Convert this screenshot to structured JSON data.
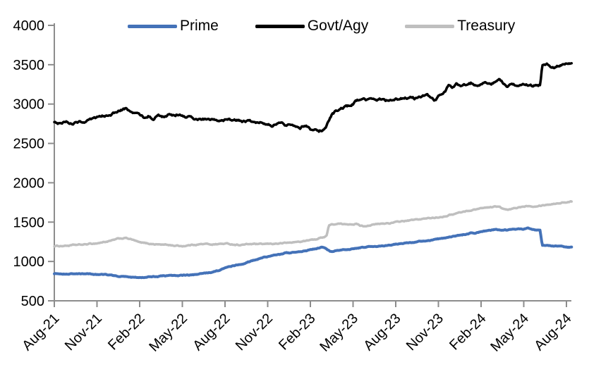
{
  "page": {
    "background": "#ffffff",
    "axis_color": "#8c8c8c",
    "text_color": "#000000"
  },
  "legend": {
    "position": "top",
    "items": [
      {
        "label": "Prime",
        "color": "#4472b8"
      },
      {
        "label": "Govt/Agy",
        "color": "#000000"
      },
      {
        "label": "Treasury",
        "color": "#bfbfbf"
      }
    ]
  },
  "chart_data": {
    "type": "line",
    "title": "",
    "xlabel": "",
    "ylabel": "",
    "grid": false,
    "legend_position": "top",
    "ylim": [
      500,
      4000
    ],
    "y_ticks": [
      500,
      1000,
      1500,
      2000,
      2500,
      3000,
      3500,
      4000
    ],
    "x_unit": "months since Aug-2021",
    "x_tick_months": [
      0,
      3,
      6,
      9,
      12,
      15,
      18,
      21,
      24,
      27,
      30,
      33,
      36
    ],
    "x_tick_labels": [
      "Aug-21",
      "Nov-21",
      "Feb-22",
      "May-22",
      "Aug-22",
      "Nov-22",
      "Feb-23",
      "May-23",
      "Aug-23",
      "Nov-23",
      "Feb-24",
      "May-24",
      "Aug-24"
    ],
    "series": [
      {
        "name": "Prime",
        "color": "#4472b8",
        "width": 4,
        "points": [
          [
            0,
            845
          ],
          [
            0.5,
            848
          ],
          [
            1,
            841
          ],
          [
            1.5,
            844
          ],
          [
            2,
            839
          ],
          [
            2.5,
            842
          ],
          [
            3,
            838
          ],
          [
            3.5,
            831
          ],
          [
            4,
            821
          ],
          [
            4.5,
            811
          ],
          [
            5,
            805
          ],
          [
            5.5,
            799
          ],
          [
            6,
            798
          ],
          [
            6.5,
            804
          ],
          [
            7,
            810
          ],
          [
            7.5,
            815
          ],
          [
            8,
            818
          ],
          [
            8.5,
            816
          ],
          [
            9,
            821
          ],
          [
            9.5,
            826
          ],
          [
            10,
            833
          ],
          [
            10.5,
            846
          ],
          [
            11,
            863
          ],
          [
            11.5,
            882
          ],
          [
            12,
            916
          ],
          [
            12.5,
            941
          ],
          [
            13,
            962
          ],
          [
            13.5,
            986
          ],
          [
            14,
            1012
          ],
          [
            14.5,
            1041
          ],
          [
            15,
            1063
          ],
          [
            15.5,
            1081
          ],
          [
            16,
            1093
          ],
          [
            16.2,
            1111
          ],
          [
            16.6,
            1107
          ],
          [
            17,
            1117
          ],
          [
            17.5,
            1131
          ],
          [
            18,
            1149
          ],
          [
            18.6,
            1171
          ],
          [
            18.9,
            1179
          ],
          [
            19.15,
            1152
          ],
          [
            19.4,
            1129
          ],
          [
            20,
            1139
          ],
          [
            20.5,
            1151
          ],
          [
            21,
            1161
          ],
          [
            21.5,
            1174
          ],
          [
            22,
            1184
          ],
          [
            22.5,
            1191
          ],
          [
            23,
            1197
          ],
          [
            23.5,
            1204
          ],
          [
            24,
            1217
          ],
          [
            24.5,
            1231
          ],
          [
            25,
            1241
          ],
          [
            25.5,
            1251
          ],
          [
            26,
            1257
          ],
          [
            26.5,
            1269
          ],
          [
            27,
            1284
          ],
          [
            27.5,
            1299
          ],
          [
            28,
            1317
          ],
          [
            28.5,
            1331
          ],
          [
            29,
            1347
          ],
          [
            29.4,
            1366
          ],
          [
            29.6,
            1354
          ],
          [
            30,
            1381
          ],
          [
            30.5,
            1394
          ],
          [
            31,
            1407
          ],
          [
            31.5,
            1397
          ],
          [
            32,
            1401
          ],
          [
            32.5,
            1407
          ],
          [
            33,
            1411
          ],
          [
            33.3,
            1419
          ],
          [
            33.6,
            1407
          ],
          [
            34,
            1397
          ],
          [
            34.15,
            1401
          ],
          [
            34.3,
            1204
          ],
          [
            34.7,
            1197
          ],
          [
            35,
            1191
          ],
          [
            35.3,
            1197
          ],
          [
            35.6,
            1187
          ],
          [
            36,
            1181
          ],
          [
            36.4,
            1178
          ]
        ]
      },
      {
        "name": "Govt/Agy",
        "color": "#000000",
        "width": 3.5,
        "points": [
          [
            0,
            2780
          ],
          [
            0.3,
            2764
          ],
          [
            0.7,
            2776
          ],
          [
            1,
            2768
          ],
          [
            1.3,
            2757
          ],
          [
            1.7,
            2772
          ],
          [
            2,
            2778
          ],
          [
            2.5,
            2791
          ],
          [
            3,
            2818
          ],
          [
            3.5,
            2846
          ],
          [
            4,
            2876
          ],
          [
            4.3,
            2891
          ],
          [
            4.7,
            2921
          ],
          [
            5,
            2933
          ],
          [
            5.3,
            2906
          ],
          [
            5.7,
            2881
          ],
          [
            6,
            2867
          ],
          [
            6.3,
            2827
          ],
          [
            6.6,
            2857
          ],
          [
            7,
            2812
          ],
          [
            7.3,
            2859
          ],
          [
            7.6,
            2831
          ],
          [
            8,
            2867
          ],
          [
            8.3,
            2839
          ],
          [
            8.6,
            2861
          ],
          [
            9,
            2857
          ],
          [
            9.3,
            2819
          ],
          [
            9.6,
            2847
          ],
          [
            9.8,
            2799
          ],
          [
            10,
            2814
          ],
          [
            10.5,
            2807
          ],
          [
            11,
            2801
          ],
          [
            11.5,
            2799
          ],
          [
            12,
            2797
          ],
          [
            12.5,
            2791
          ],
          [
            13,
            2787
          ],
          [
            13.5,
            2779
          ],
          [
            14,
            2771
          ],
          [
            14.3,
            2751
          ],
          [
            14.6,
            2767
          ],
          [
            15,
            2757
          ],
          [
            15.3,
            2741
          ],
          [
            15.7,
            2761
          ],
          [
            16,
            2747
          ],
          [
            16.3,
            2717
          ],
          [
            16.6,
            2751
          ],
          [
            17,
            2731
          ],
          [
            17.3,
            2707
          ],
          [
            17.7,
            2737
          ],
          [
            18,
            2691
          ],
          [
            18.3,
            2671
          ],
          [
            18.6,
            2657
          ],
          [
            18.9,
            2671
          ],
          [
            19.1,
            2699
          ],
          [
            19.25,
            2771
          ],
          [
            19.5,
            2869
          ],
          [
            19.8,
            2911
          ],
          [
            20,
            2927
          ],
          [
            20.3,
            2947
          ],
          [
            20.7,
            2974
          ],
          [
            21,
            3004
          ],
          [
            21.3,
            3047
          ],
          [
            21.6,
            3059
          ],
          [
            22,
            3041
          ],
          [
            22.3,
            3067
          ],
          [
            22.7,
            3051
          ],
          [
            23,
            3059
          ],
          [
            23.3,
            3041
          ],
          [
            23.7,
            3061
          ],
          [
            24,
            3069
          ],
          [
            24.3,
            3057
          ],
          [
            24.7,
            3077
          ],
          [
            25,
            3087
          ],
          [
            25.3,
            3071
          ],
          [
            25.7,
            3094
          ],
          [
            26,
            3107
          ],
          [
            26.2,
            3127
          ],
          [
            26.5,
            3071
          ],
          [
            26.8,
            3044
          ],
          [
            27,
            3094
          ],
          [
            27.2,
            3127
          ],
          [
            27.5,
            3161
          ],
          [
            27.7,
            3237
          ],
          [
            28,
            3209
          ],
          [
            28.3,
            3257
          ],
          [
            28.6,
            3234
          ],
          [
            29,
            3247
          ],
          [
            29.3,
            3267
          ],
          [
            29.6,
            3241
          ],
          [
            30,
            3261
          ],
          [
            30.3,
            3287
          ],
          [
            30.7,
            3271
          ],
          [
            31,
            3294
          ],
          [
            31.3,
            3317
          ],
          [
            31.6,
            3254
          ],
          [
            31.8,
            3207
          ],
          [
            32,
            3227
          ],
          [
            32.5,
            3221
          ],
          [
            33,
            3231
          ],
          [
            33.5,
            3227
          ],
          [
            34,
            3241
          ],
          [
            34.15,
            3251
          ],
          [
            34.3,
            3497
          ],
          [
            34.6,
            3511
          ],
          [
            34.9,
            3477
          ],
          [
            35.2,
            3461
          ],
          [
            35.5,
            3487
          ],
          [
            35.8,
            3507
          ],
          [
            36,
            3517
          ],
          [
            36.4,
            3531
          ]
        ]
      },
      {
        "name": "Treasury",
        "color": "#bfbfbf",
        "width": 3.5,
        "points": [
          [
            0,
            1195
          ],
          [
            0.5,
            1198
          ],
          [
            1,
            1202
          ],
          [
            1.5,
            1208
          ],
          [
            2,
            1212
          ],
          [
            2.5,
            1222
          ],
          [
            3,
            1232
          ],
          [
            3.5,
            1248
          ],
          [
            4,
            1262
          ],
          [
            4.5,
            1286
          ],
          [
            5,
            1298
          ],
          [
            5.3,
            1287
          ],
          [
            5.7,
            1261
          ],
          [
            6,
            1238
          ],
          [
            6.5,
            1228
          ],
          [
            7,
            1221
          ],
          [
            7.5,
            1216
          ],
          [
            8,
            1210
          ],
          [
            8.5,
            1201
          ],
          [
            9,
            1196
          ],
          [
            9.5,
            1207
          ],
          [
            10,
            1217
          ],
          [
            10.5,
            1222
          ],
          [
            11,
            1218
          ],
          [
            11.5,
            1221
          ],
          [
            12,
            1226
          ],
          [
            12.5,
            1218
          ],
          [
            13,
            1212
          ],
          [
            13.5,
            1217
          ],
          [
            14,
            1222
          ],
          [
            14.5,
            1216
          ],
          [
            15,
            1221
          ],
          [
            15.5,
            1226
          ],
          [
            16,
            1231
          ],
          [
            16.5,
            1238
          ],
          [
            17,
            1246
          ],
          [
            17.5,
            1257
          ],
          [
            18,
            1271
          ],
          [
            18.5,
            1287
          ],
          [
            19,
            1317
          ],
          [
            19.15,
            1334
          ],
          [
            19.3,
            1461
          ],
          [
            19.6,
            1471
          ],
          [
            20,
            1477
          ],
          [
            20.4,
            1467
          ],
          [
            20.8,
            1477
          ],
          [
            21.2,
            1481
          ],
          [
            21.5,
            1457
          ],
          [
            21.8,
            1451
          ],
          [
            22.2,
            1464
          ],
          [
            22.6,
            1471
          ],
          [
            23,
            1477
          ],
          [
            23.5,
            1487
          ],
          [
            24,
            1497
          ],
          [
            24.5,
            1511
          ],
          [
            25,
            1521
          ],
          [
            25.5,
            1531
          ],
          [
            26,
            1541
          ],
          [
            26.5,
            1551
          ],
          [
            27,
            1564
          ],
          [
            27.5,
            1581
          ],
          [
            28,
            1601
          ],
          [
            28.5,
            1621
          ],
          [
            29,
            1641
          ],
          [
            29.5,
            1657
          ],
          [
            30,
            1677
          ],
          [
            30.3,
            1687
          ],
          [
            30.7,
            1691
          ],
          [
            31,
            1699
          ],
          [
            31.3,
            1691
          ],
          [
            31.6,
            1661
          ],
          [
            31.9,
            1651
          ],
          [
            32.2,
            1667
          ],
          [
            32.6,
            1684
          ],
          [
            33,
            1701
          ],
          [
            33.3,
            1711
          ],
          [
            33.6,
            1705
          ],
          [
            34,
            1714
          ],
          [
            34.4,
            1721
          ],
          [
            34.8,
            1727
          ],
          [
            35.2,
            1737
          ],
          [
            35.6,
            1747
          ],
          [
            36,
            1754
          ],
          [
            36.4,
            1761
          ]
        ]
      }
    ]
  }
}
